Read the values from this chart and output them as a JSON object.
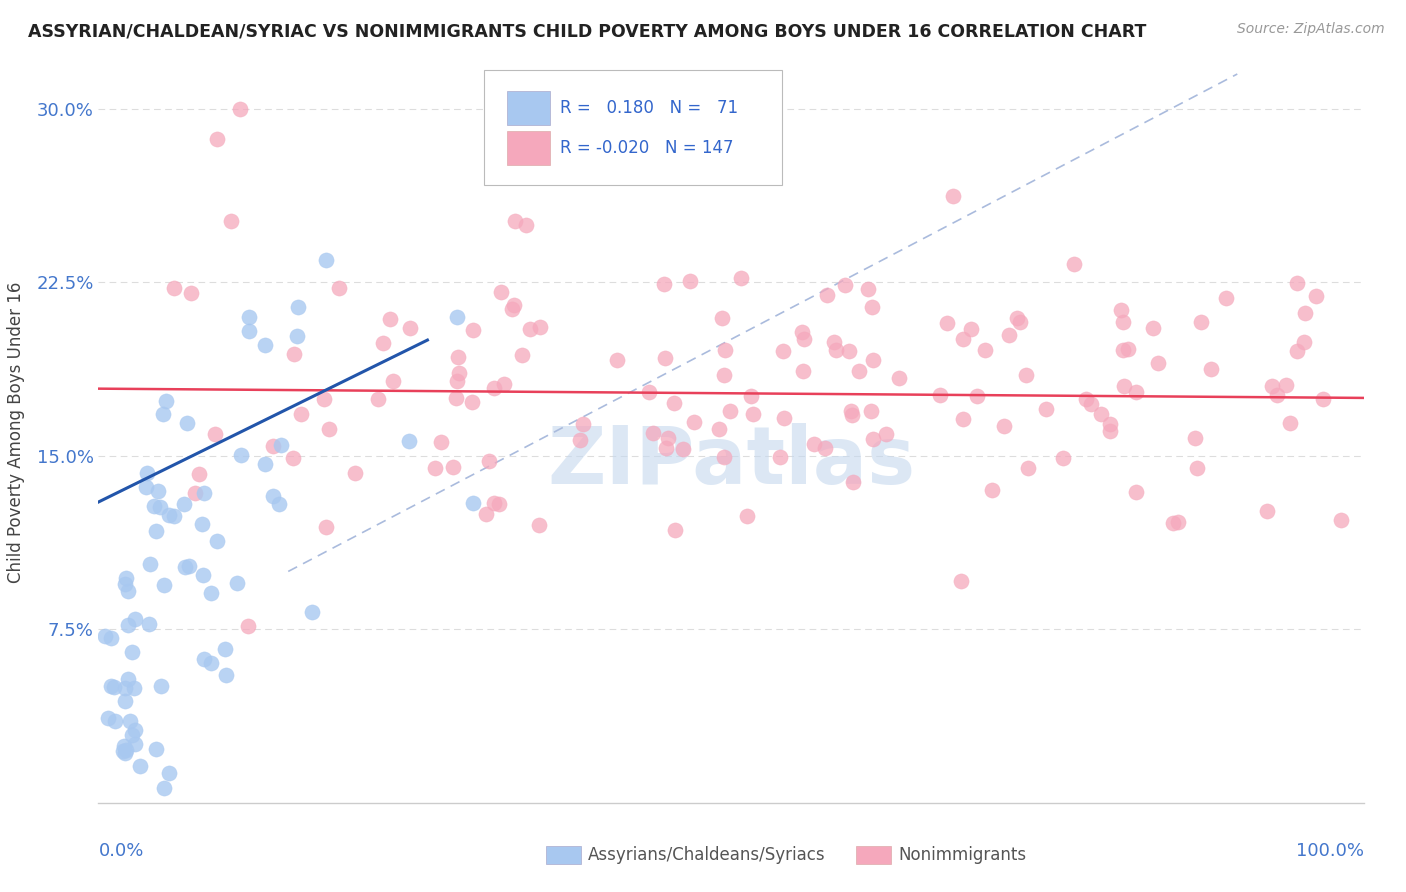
{
  "title": "ASSYRIAN/CHALDEAN/SYRIAC VS NONIMMIGRANTS CHILD POVERTY AMONG BOYS UNDER 16 CORRELATION CHART",
  "source_text": "Source: ZipAtlas.com",
  "ylabel": "Child Poverty Among Boys Under 16",
  "y_ticks": [
    0.075,
    0.15,
    0.225,
    0.3
  ],
  "y_tick_labels": [
    "7.5%",
    "15.0%",
    "22.5%",
    "30.0%"
  ],
  "xlim": [
    0.0,
    1.0
  ],
  "ylim": [
    0.0,
    0.32
  ],
  "legend_blue_r": "0.180",
  "legend_blue_n": "71",
  "legend_pink_r": "-0.020",
  "legend_pink_n": "147",
  "blue_color": "#A8C8F0",
  "pink_color": "#F5A8BC",
  "blue_line_color": "#2255AA",
  "pink_line_color": "#E8405A",
  "diag_line_color": "#AABBDD",
  "watermark_color": "#C5D8EE",
  "title_color": "#222222",
  "tick_label_color": "#4477CC",
  "grid_color": "#DDDDDD",
  "legend_text_color": "#222222",
  "legend_value_color": "#3366CC",
  "bottom_legend_color": "#555555",
  "source_color": "#999999",
  "ylabel_color": "#444444"
}
